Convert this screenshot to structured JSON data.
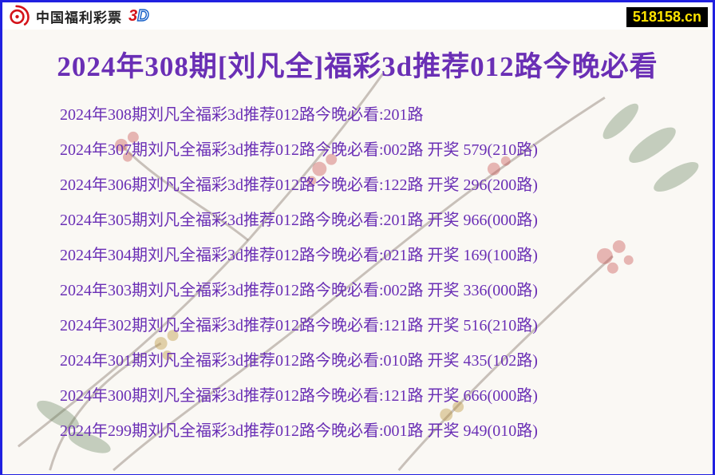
{
  "colors": {
    "border": "#2020e0",
    "title": "#6a2fb5",
    "row_text": "#6a2fb5",
    "badge_bg": "#000000",
    "badge_text": "#ffe400",
    "logo_red": "#d4131a",
    "logo_text": "#222222",
    "logo_3": "#d4131a",
    "logo_d_fill": "#ffffff",
    "logo_d_stroke": "#1a62c9",
    "page_bg": "#faf8f4",
    "branch": "#6b5a4a",
    "flower1": "#c95050",
    "flower2": "#b89038",
    "leaf": "#5f7f55"
  },
  "header": {
    "brand_text": "中国福利彩票",
    "brand_suffix_3": "3",
    "brand_suffix_d": "D"
  },
  "badge": "518158.cn",
  "title": "2024年308期[刘凡全]福彩3d推荐012路今晚必看",
  "style": {
    "title_fontsize": 35,
    "row_fontsize": 20,
    "row_gap": 24,
    "frame_width": 896,
    "frame_height": 595
  },
  "rows": [
    {
      "period": "308",
      "pick": "201路",
      "draw": "",
      "route": ""
    },
    {
      "period": "307",
      "pick": "002路",
      "draw": "579",
      "route": "210路"
    },
    {
      "period": "306",
      "pick": "122路",
      "draw": "296",
      "route": "200路"
    },
    {
      "period": "305",
      "pick": "201路",
      "draw": "966",
      "route": "000路"
    },
    {
      "period": "304",
      "pick": "021路",
      "draw": "169",
      "route": "100路"
    },
    {
      "period": "303",
      "pick": "002路",
      "draw": "336",
      "route": "000路"
    },
    {
      "period": "302",
      "pick": "121路",
      "draw": "516",
      "route": "210路"
    },
    {
      "period": "301",
      "pick": "010路",
      "draw": "435",
      "route": "102路"
    },
    {
      "period": "300",
      "pick": "121路",
      "draw": "666",
      "route": "000路"
    },
    {
      "period": "299",
      "pick": "001路",
      "draw": "949",
      "route": "010路"
    }
  ],
  "row_template": {
    "prefix": "2024年",
    "mid": "期刘凡全福彩3d推荐012路今晚必看:",
    "draw_label": " 开奖  "
  }
}
